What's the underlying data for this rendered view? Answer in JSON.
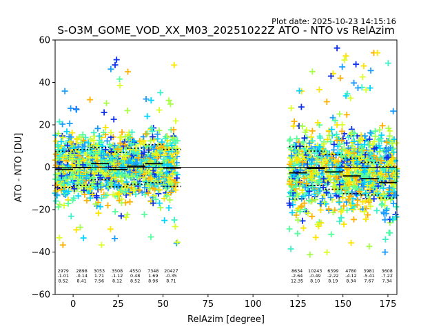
{
  "plot_date": "Plot date: 2025-10-23 14:15:16",
  "chart_data": {
    "type": "scatter",
    "title": "S-O3M_GOME_VOD_XX_M03_20251022Z ATO - NTO vs RelAzim",
    "xlabel": "RelAzim [degree]",
    "ylabel": "ATO - NTO [DU]",
    "xlim": [
      -10,
      180
    ],
    "ylim": [
      -60,
      60
    ],
    "xticks": [
      0,
      25,
      50,
      75,
      100,
      125,
      150,
      175
    ],
    "yticks": [
      -60,
      -40,
      -20,
      0,
      20,
      40,
      60
    ],
    "zero_line": 0,
    "point_marker": "plus",
    "point_clouds": [
      {
        "x_range": [
          -10,
          58
        ],
        "core_y": [
          -22,
          22
        ],
        "outlier_y": [
          -38,
          52
        ]
      },
      {
        "x_range": [
          120,
          180
        ],
        "core_y": [
          -30,
          25
        ],
        "outlier_y": [
          -45,
          58
        ]
      }
    ],
    "colors": [
      "#0d2fe8",
      "#1b9cfc",
      "#00d4ff",
      "#3cf0c8",
      "#55ff9a",
      "#a8ff4a",
      "#dcff2a",
      "#ffe400",
      "#ffb000"
    ],
    "bins": [
      {
        "x_start": -10,
        "x_end": 0,
        "mean": -1.01,
        "upper": 7.51,
        "lower": -9.53
      },
      {
        "x_start": 0,
        "x_end": 10,
        "mean": -0.14,
        "upper": 8.27,
        "lower": -8.55
      },
      {
        "x_start": 10,
        "x_end": 20,
        "mean": 1.71,
        "upper": 9.27,
        "lower": -5.85
      },
      {
        "x_start": 20,
        "x_end": 30,
        "mean": -1.12,
        "upper": 7.0,
        "lower": -9.24
      },
      {
        "x_start": 30,
        "x_end": 40,
        "mean": 0.48,
        "upper": 9.0,
        "lower": -8.04
      },
      {
        "x_start": 40,
        "x_end": 50,
        "mean": 1.69,
        "upper": 10.65,
        "lower": -7.27
      },
      {
        "x_start": 50,
        "x_end": 60,
        "mean": -0.35,
        "upper": 8.36,
        "lower": -9.06
      },
      {
        "x_start": 120,
        "x_end": 130,
        "mean": -2.64,
        "upper": 9.71,
        "lower": -14.99
      },
      {
        "x_start": 130,
        "x_end": 140,
        "mean": -0.49,
        "upper": 7.61,
        "lower": -8.59
      },
      {
        "x_start": 140,
        "x_end": 150,
        "mean": -2.22,
        "upper": 5.97,
        "lower": -10.41
      },
      {
        "x_start": 150,
        "x_end": 160,
        "mean": -4.12,
        "upper": 4.22,
        "lower": -12.46
      },
      {
        "x_start": 160,
        "x_end": 170,
        "mean": -5.41,
        "upper": 2.26,
        "lower": -13.08
      },
      {
        "x_start": 170,
        "x_end": 180,
        "mean": -7.22,
        "upper": 0.12,
        "lower": -14.56
      }
    ],
    "stats": [
      {
        "x": -5.5,
        "count": "2979",
        "mean": "-1.01",
        "std": "8.52"
      },
      {
        "x": 4.8,
        "count": "2898",
        "mean": "-0.14",
        "std": "8.41"
      },
      {
        "x": 14.5,
        "count": "3053",
        "mean": "1.71",
        "std": "7.56"
      },
      {
        "x": 24.5,
        "count": "3508",
        "mean": "-1.12",
        "std": "8.12"
      },
      {
        "x": 34.5,
        "count": "4550",
        "mean": "0.48",
        "std": "8.52"
      },
      {
        "x": 44.5,
        "count": "7348",
        "mean": "1.69",
        "std": "8.96"
      },
      {
        "x": 54.5,
        "count": "20427",
        "mean": "-0.35",
        "std": "8.71"
      },
      {
        "x": 124.5,
        "count": "8634",
        "mean": "-2.64",
        "std": "12.35"
      },
      {
        "x": 134.5,
        "count": "10243",
        "mean": "-0.49",
        "std": "8.10"
      },
      {
        "x": 144.5,
        "count": "6399",
        "mean": "-2.22",
        "std": "8.19"
      },
      {
        "x": 154.5,
        "count": "4780",
        "mean": "-4.12",
        "std": "8.34"
      },
      {
        "x": 164.5,
        "count": "3981",
        "mean": "-5.41",
        "std": "7.67"
      },
      {
        "x": 174.5,
        "count": "3608",
        "mean": "-7.22",
        "std": "7.34"
      }
    ]
  }
}
